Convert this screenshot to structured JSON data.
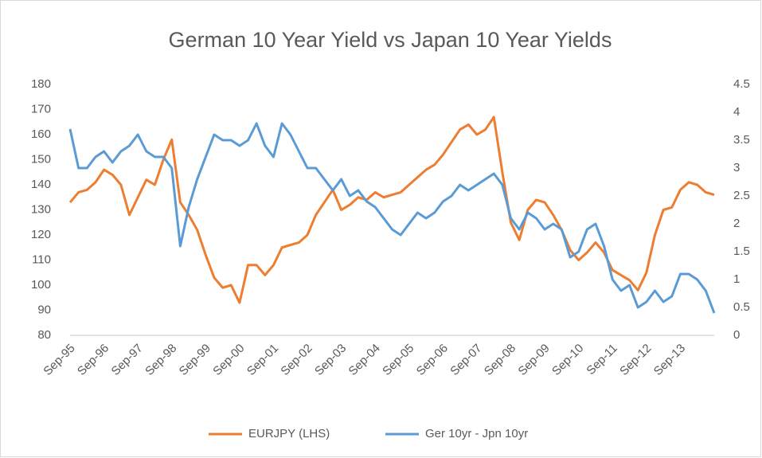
{
  "chart_data": {
    "type": "line",
    "title": "German 10 Year Yield vs Japan 10 Year Yields",
    "categories": [
      "Sep-95",
      null,
      null,
      null,
      "Sep-96",
      null,
      null,
      null,
      "Sep-97",
      null,
      null,
      null,
      "Sep-98",
      null,
      null,
      null,
      "Sep-99",
      null,
      null,
      null,
      "Sep-00",
      null,
      null,
      null,
      "Sep-01",
      null,
      null,
      null,
      "Sep-02",
      null,
      null,
      null,
      "Sep-03",
      null,
      null,
      null,
      "Sep-04",
      null,
      null,
      null,
      "Sep-05",
      null,
      null,
      null,
      "Sep-06",
      null,
      null,
      null,
      "Sep-07",
      null,
      null,
      null,
      "Sep-08",
      null,
      null,
      null,
      "Sep-09",
      null,
      null,
      null,
      "Sep-10",
      null,
      null,
      null,
      "Sep-11",
      null,
      null,
      null,
      "Sep-12",
      null,
      null,
      null,
      "Sep-13",
      null,
      null,
      null,
      null
    ],
    "series": [
      {
        "name": "EURJPY (LHS)",
        "color": "#ed7d31",
        "axis": "y",
        "values": [
          133,
          137,
          138,
          141,
          146,
          144,
          140,
          128,
          135,
          142,
          140,
          150,
          158,
          133,
          128,
          122,
          112,
          103,
          99,
          100,
          93,
          108,
          108,
          104,
          108,
          115,
          116,
          117,
          120,
          128,
          133,
          138,
          130,
          132,
          135,
          134,
          137,
          135,
          136,
          137,
          140,
          143,
          146,
          148,
          152,
          157,
          162,
          164,
          160,
          162,
          167,
          145,
          125,
          118,
          130,
          134,
          133,
          128,
          122,
          114,
          110,
          113,
          117,
          113,
          106,
          104,
          102,
          98,
          105,
          120,
          130,
          131,
          138,
          141,
          140,
          137,
          136
        ]
      },
      {
        "name": "Ger 10yr - Jpn 10yr",
        "color": "#5b9bd5",
        "axis": "y2",
        "values": [
          3.7,
          3.0,
          3.0,
          3.2,
          3.3,
          3.1,
          3.3,
          3.4,
          3.6,
          3.3,
          3.2,
          3.2,
          3.0,
          1.6,
          2.3,
          2.8,
          3.2,
          3.6,
          3.5,
          3.5,
          3.4,
          3.5,
          3.8,
          3.4,
          3.2,
          3.8,
          3.6,
          3.3,
          3.0,
          3.0,
          2.8,
          2.6,
          2.8,
          2.5,
          2.6,
          2.4,
          2.3,
          2.1,
          1.9,
          1.8,
          2.0,
          2.2,
          2.1,
          2.2,
          2.4,
          2.5,
          2.7,
          2.6,
          2.7,
          2.8,
          2.9,
          2.7,
          2.1,
          1.9,
          2.2,
          2.1,
          1.9,
          2.0,
          1.9,
          1.4,
          1.5,
          1.9,
          2.0,
          1.6,
          1.0,
          0.8,
          0.9,
          0.5,
          0.6,
          0.8,
          0.6,
          0.7,
          1.1,
          1.1,
          1.0,
          0.8,
          0.4
        ]
      }
    ],
    "ylim": [
      80,
      180
    ],
    "yticks": [
      80,
      90,
      100,
      110,
      120,
      130,
      140,
      150,
      160,
      170,
      180
    ],
    "y2lim": [
      0,
      4.5
    ],
    "y2ticks": [
      0,
      0.5,
      1,
      1.5,
      2,
      2.5,
      3,
      3.5,
      4,
      4.5
    ],
    "grid": false,
    "legend": "bottom"
  }
}
